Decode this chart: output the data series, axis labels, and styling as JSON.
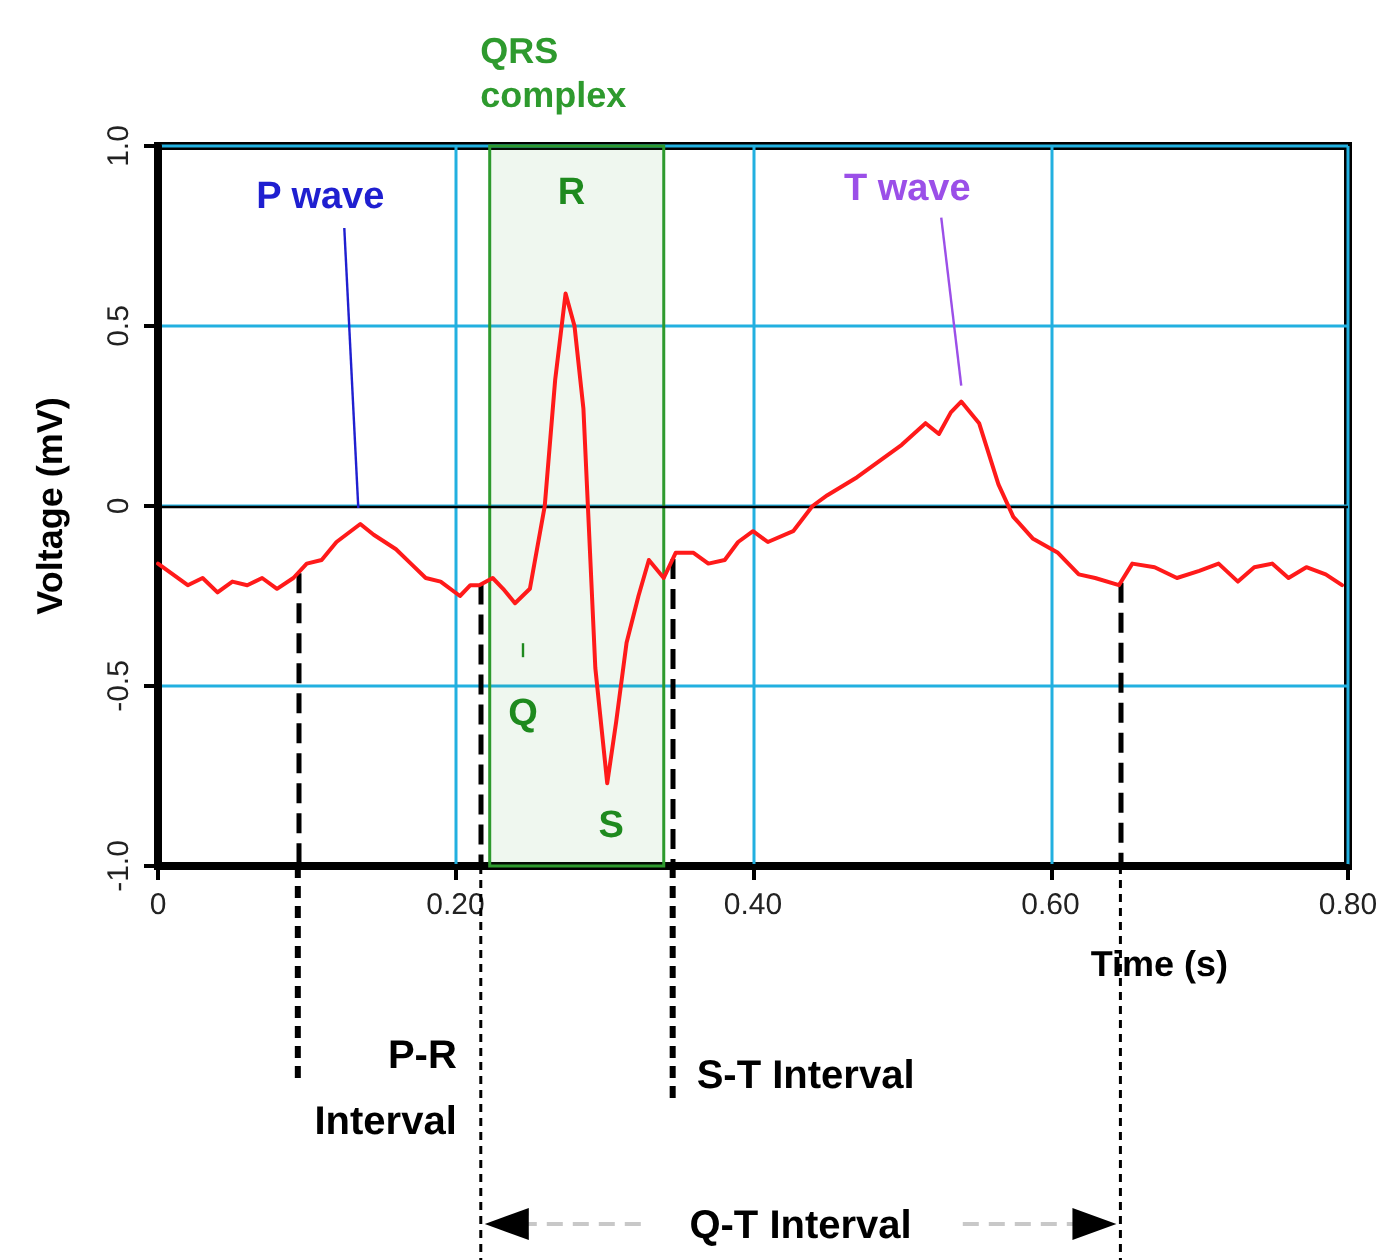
{
  "chart_data": {
    "type": "line",
    "xlabel": "Time (s)",
    "ylabel": "Voltage (mV)",
    "xlim": [
      0,
      0.8
    ],
    "ylim": [
      -1.0,
      1.0
    ],
    "xticks": [
      0,
      {
        "value": 0.2,
        "label": "0.20"
      },
      {
        "value": 0.4,
        "label": "0.40"
      },
      {
        "value": 0.6,
        "label": "0.60"
      },
      {
        "value": 0.8,
        "label": "0.80"
      }
    ],
    "yticks": [
      {
        "value": -1.0,
        "label": "-1.0"
      },
      -0.5,
      0,
      0.5,
      {
        "value": 1.0,
        "label": "1.0"
      }
    ],
    "grid": true,
    "marker": "none",
    "line_style": "solid",
    "series": [
      {
        "color": "#ff1a1a",
        "x": [
          0,
          0.01,
          0.02,
          0.03,
          0.04,
          0.05,
          0.06,
          0.07,
          0.08,
          0.091,
          0.1,
          0.11,
          0.12,
          0.136,
          0.145,
          0.16,
          0.17,
          0.18,
          0.19,
          0.203,
          0.21,
          0.216,
          0.225,
          0.232,
          0.24,
          0.25,
          0.26,
          0.267,
          0.274,
          0.28,
          0.286,
          0.294,
          0.302,
          0.308,
          0.315,
          0.323,
          0.33,
          0.34,
          0.348,
          0.36,
          0.37,
          0.381,
          0.39,
          0.4,
          0.41,
          0.427,
          0.44,
          0.45,
          0.47,
          0.49,
          0.5,
          0.516,
          0.525,
          0.533,
          0.54,
          0.552,
          0.565,
          0.575,
          0.588,
          0.605,
          0.619,
          0.63,
          0.646,
          0.655,
          0.67,
          0.685,
          0.7,
          0.713,
          0.726,
          0.737,
          0.749,
          0.76,
          0.772,
          0.785,
          0.796
        ],
        "values": [
          -0.16,
          -0.19,
          -0.22,
          -0.2,
          -0.24,
          -0.21,
          -0.22,
          -0.2,
          -0.23,
          -0.2,
          -0.16,
          -0.15,
          -0.1,
          -0.05,
          -0.08,
          -0.12,
          -0.16,
          -0.2,
          -0.21,
          -0.25,
          -0.22,
          -0.22,
          -0.2,
          -0.23,
          -0.27,
          -0.23,
          0,
          0.35,
          0.59,
          0.5,
          0.27,
          -0.45,
          -0.77,
          -0.6,
          -0.38,
          -0.25,
          -0.15,
          -0.2,
          -0.13,
          -0.13,
          -0.16,
          -0.15,
          -0.1,
          -0.07,
          -0.1,
          -0.07,
          0.0,
          0.03,
          0.08,
          0.14,
          0.17,
          0.23,
          0.2,
          0.26,
          0.29,
          0.23,
          0.06,
          -0.03,
          -0.09,
          -0.13,
          -0.19,
          -0.2,
          -0.22,
          -0.16,
          -0.17,
          -0.2,
          -0.18,
          -0.16,
          -0.21,
          -0.17,
          -0.16,
          -0.2,
          -0.17,
          -0.19,
          -0.22
        ]
      }
    ],
    "bands": [
      {
        "axis": "x",
        "from": 0.223,
        "to": 0.34,
        "label": "QRS complex",
        "color": "#2e9a2e"
      }
    ],
    "ref_lines": [
      {
        "axis": "x",
        "value": 0.094,
        "color": "#000000",
        "line_style": "dashed"
      },
      {
        "axis": "x",
        "value": 0.217,
        "color": "#000000",
        "line_style": "dashed"
      },
      {
        "axis": "x",
        "value": 0.346,
        "color": "#000000",
        "line_style": "dashed"
      },
      {
        "axis": "x",
        "value": 0.647,
        "color": "#000000",
        "line_style": "dashed"
      },
      {
        "axis": "y",
        "value": 0,
        "color": "#000000",
        "line_style": "solid"
      }
    ],
    "annotations": [
      {
        "text": "P wave",
        "x": 0.136,
        "y": -0.05
      },
      {
        "text": "R",
        "x": 0.274,
        "y": 0.59
      },
      {
        "text": "Q",
        "x": 0.24,
        "y": -0.27
      },
      {
        "text": "S",
        "x": 0.302,
        "y": -0.77
      },
      {
        "text": "T wave",
        "x": 0.54,
        "y": 0.29
      },
      "P-R Interval",
      "S-T Interval",
      "Q-T Interval"
    ]
  }
}
